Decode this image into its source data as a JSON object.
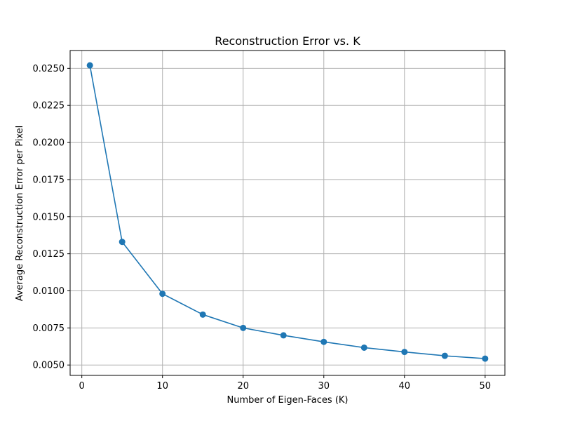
{
  "chart_data": {
    "type": "line",
    "title": "Reconstruction Error vs. K",
    "xlabel": "Number of Eigen-Faces (K)",
    "ylabel": "Average Reconstruction Error per Pixel",
    "xlim": [
      -1.45,
      52.45
    ],
    "ylim": [
      0.0043,
      0.0262
    ],
    "xticks": [
      0,
      10,
      20,
      30,
      40,
      50
    ],
    "yticks": [
      0.005,
      0.0075,
      0.01,
      0.0125,
      0.015,
      0.0175,
      0.02,
      0.0225,
      0.025
    ],
    "ytick_labels": [
      "0.0050",
      "0.0075",
      "0.0100",
      "0.0125",
      "0.0150",
      "0.0175",
      "0.0200",
      "0.0225",
      "0.0250"
    ],
    "grid": true,
    "colors": {
      "line": "#1f77b4",
      "marker": "#1f77b4",
      "grid": "#b0b0b0",
      "axes": "#000000"
    },
    "series": [
      {
        "x": [
          1,
          5,
          10,
          15,
          20,
          25,
          30,
          35,
          40,
          45,
          50
        ],
        "values": [
          0.0252,
          0.0133,
          0.0098,
          0.0084,
          0.0075,
          0.007,
          0.00656,
          0.00617,
          0.00588,
          0.00562,
          0.00543
        ]
      }
    ]
  }
}
